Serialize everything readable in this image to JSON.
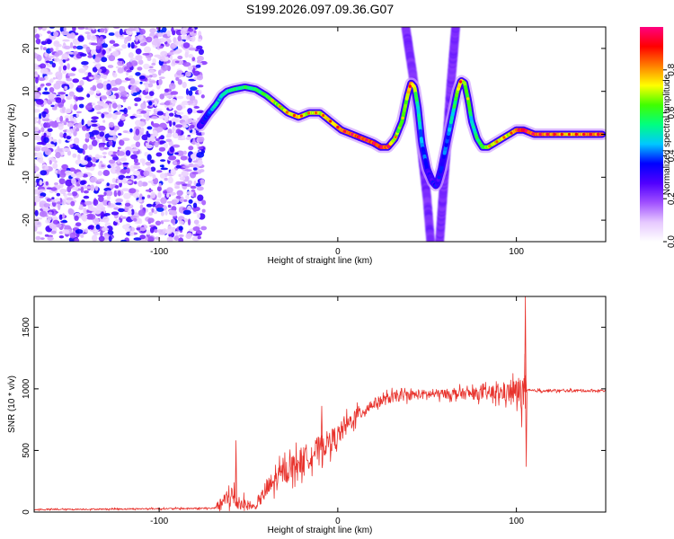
{
  "title": "S199.2026.097.09.36.G07",
  "chart_data": [
    {
      "type": "heatmap",
      "name": "spectrogram",
      "xlabel": "Height of straight line (km)",
      "ylabel": "Frequency (Hz)",
      "xlim": [
        -170,
        150
      ],
      "ylim": [
        -25,
        25
      ],
      "xticks": [
        -100,
        0,
        100
      ],
      "xtick_labels": [
        "-100",
        "0",
        "100"
      ],
      "yticks": [
        -20,
        -10,
        0,
        10,
        20
      ],
      "ytick_labels": [
        "-20",
        "-10",
        "0",
        "10",
        "20"
      ],
      "colorbar": {
        "label": "Normalized spectral amplitude",
        "range": [
          0,
          1
        ],
        "ticks": [
          0.0,
          0.2,
          0.4,
          0.6,
          0.8
        ],
        "tick_labels": [
          "0.0",
          "0.2",
          "0.4",
          "0.6",
          "0.8"
        ],
        "colors": [
          "#ffffff",
          "#e6c8ff",
          "#a050ff",
          "#5000ff",
          "#0000ff",
          "#00c8ff",
          "#00ff80",
          "#40ff00",
          "#ffff00",
          "#ff8000",
          "#ff0000",
          "#ff0080"
        ]
      },
      "noise_region_x": [
        -170,
        -75
      ],
      "ridge": {
        "x": [
          -77,
          -72,
          -68,
          -65,
          -62,
          -58,
          -52,
          -46,
          -40,
          -34,
          -28,
          -22,
          -16,
          -10,
          -4,
          2,
          8,
          14,
          20,
          24,
          28,
          32,
          36,
          39,
          41,
          43,
          45,
          47,
          50,
          53,
          55,
          56,
          58,
          61,
          64,
          67,
          69,
          71,
          73,
          75,
          78,
          81,
          84,
          88,
          92,
          96,
          100,
          104,
          110,
          120,
          130,
          140,
          148
        ],
        "f": [
          2,
          5,
          7,
          9,
          10,
          10.5,
          11,
          10.5,
          9,
          7,
          5,
          4,
          5,
          5,
          3,
          1,
          0,
          -1,
          -2,
          -3,
          -3,
          -1,
          3,
          9,
          12,
          11,
          6,
          -2,
          -8,
          -11,
          -12,
          -11,
          -8,
          -2,
          4,
          10,
          12.5,
          12,
          8,
          3,
          -1,
          -3,
          -3,
          -2,
          -1,
          0,
          1,
          1,
          0,
          0,
          0,
          0,
          0
        ],
        "amplitude": [
          0.3,
          0.4,
          0.5,
          0.45,
          0.5,
          0.55,
          0.55,
          0.55,
          0.6,
          0.65,
          0.7,
          0.75,
          0.7,
          0.7,
          0.75,
          0.8,
          0.85,
          0.85,
          0.85,
          0.9,
          0.85,
          0.7,
          0.6,
          0.7,
          0.8,
          0.7,
          0.5,
          0.4,
          0.35,
          0.3,
          0.35,
          0.3,
          0.35,
          0.4,
          0.5,
          0.6,
          0.8,
          0.7,
          0.6,
          0.5,
          0.55,
          0.6,
          0.65,
          0.7,
          0.7,
          0.7,
          0.8,
          0.9,
          0.85,
          0.8,
          0.75,
          0.8,
          0.8
        ]
      },
      "ghost_curves": [
        {
          "x": [
            38,
            42,
            46,
            50,
            52
          ],
          "f": [
            25,
            14,
            0,
            -15,
            -25
          ],
          "amplitude": 0.2
        },
        {
          "x": [
            57,
            60,
            63,
            66
          ],
          "f": [
            -25,
            -8,
            10,
            25
          ],
          "amplitude": 0.2
        }
      ]
    },
    {
      "type": "line",
      "name": "snr",
      "xlabel": "Height of straight line (km)",
      "ylabel": "SNR (10 * v/v)",
      "xlim": [
        -170,
        150
      ],
      "ylim": [
        0,
        1750
      ],
      "xticks": [
        -100,
        0,
        100
      ],
      "xtick_labels": [
        "-100",
        "0",
        "100"
      ],
      "yticks": [
        0,
        500,
        1000,
        1500
      ],
      "ytick_labels": [
        "0",
        "500",
        "1000",
        "1500"
      ],
      "line_color": "#e8332d",
      "envelope": {
        "x": [
          -170,
          -70,
          -64,
          -60,
          -57,
          -52,
          -46,
          -40,
          -30,
          -20,
          -10,
          0,
          10,
          20,
          30,
          40,
          60,
          80,
          95,
          100,
          103,
          105,
          106,
          110,
          150
        ],
        "base": [
          20,
          30,
          80,
          140,
          90,
          60,
          40,
          180,
          330,
          420,
          520,
          620,
          780,
          880,
          930,
          950,
          960,
          960,
          970,
          975,
          970,
          975,
          985,
          985,
          985
        ],
        "noise": [
          10,
          12,
          100,
          220,
          140,
          90,
          30,
          160,
          170,
          200,
          180,
          160,
          120,
          80,
          80,
          70,
          70,
          90,
          140,
          200,
          280,
          320,
          25,
          20,
          20
        ]
      },
      "spikes": [
        {
          "x": -57,
          "y": 580
        },
        {
          "x": -9,
          "y": 860
        },
        {
          "x": 105,
          "y": 1750
        },
        {
          "x": 105.5,
          "y": 370
        }
      ]
    }
  ]
}
